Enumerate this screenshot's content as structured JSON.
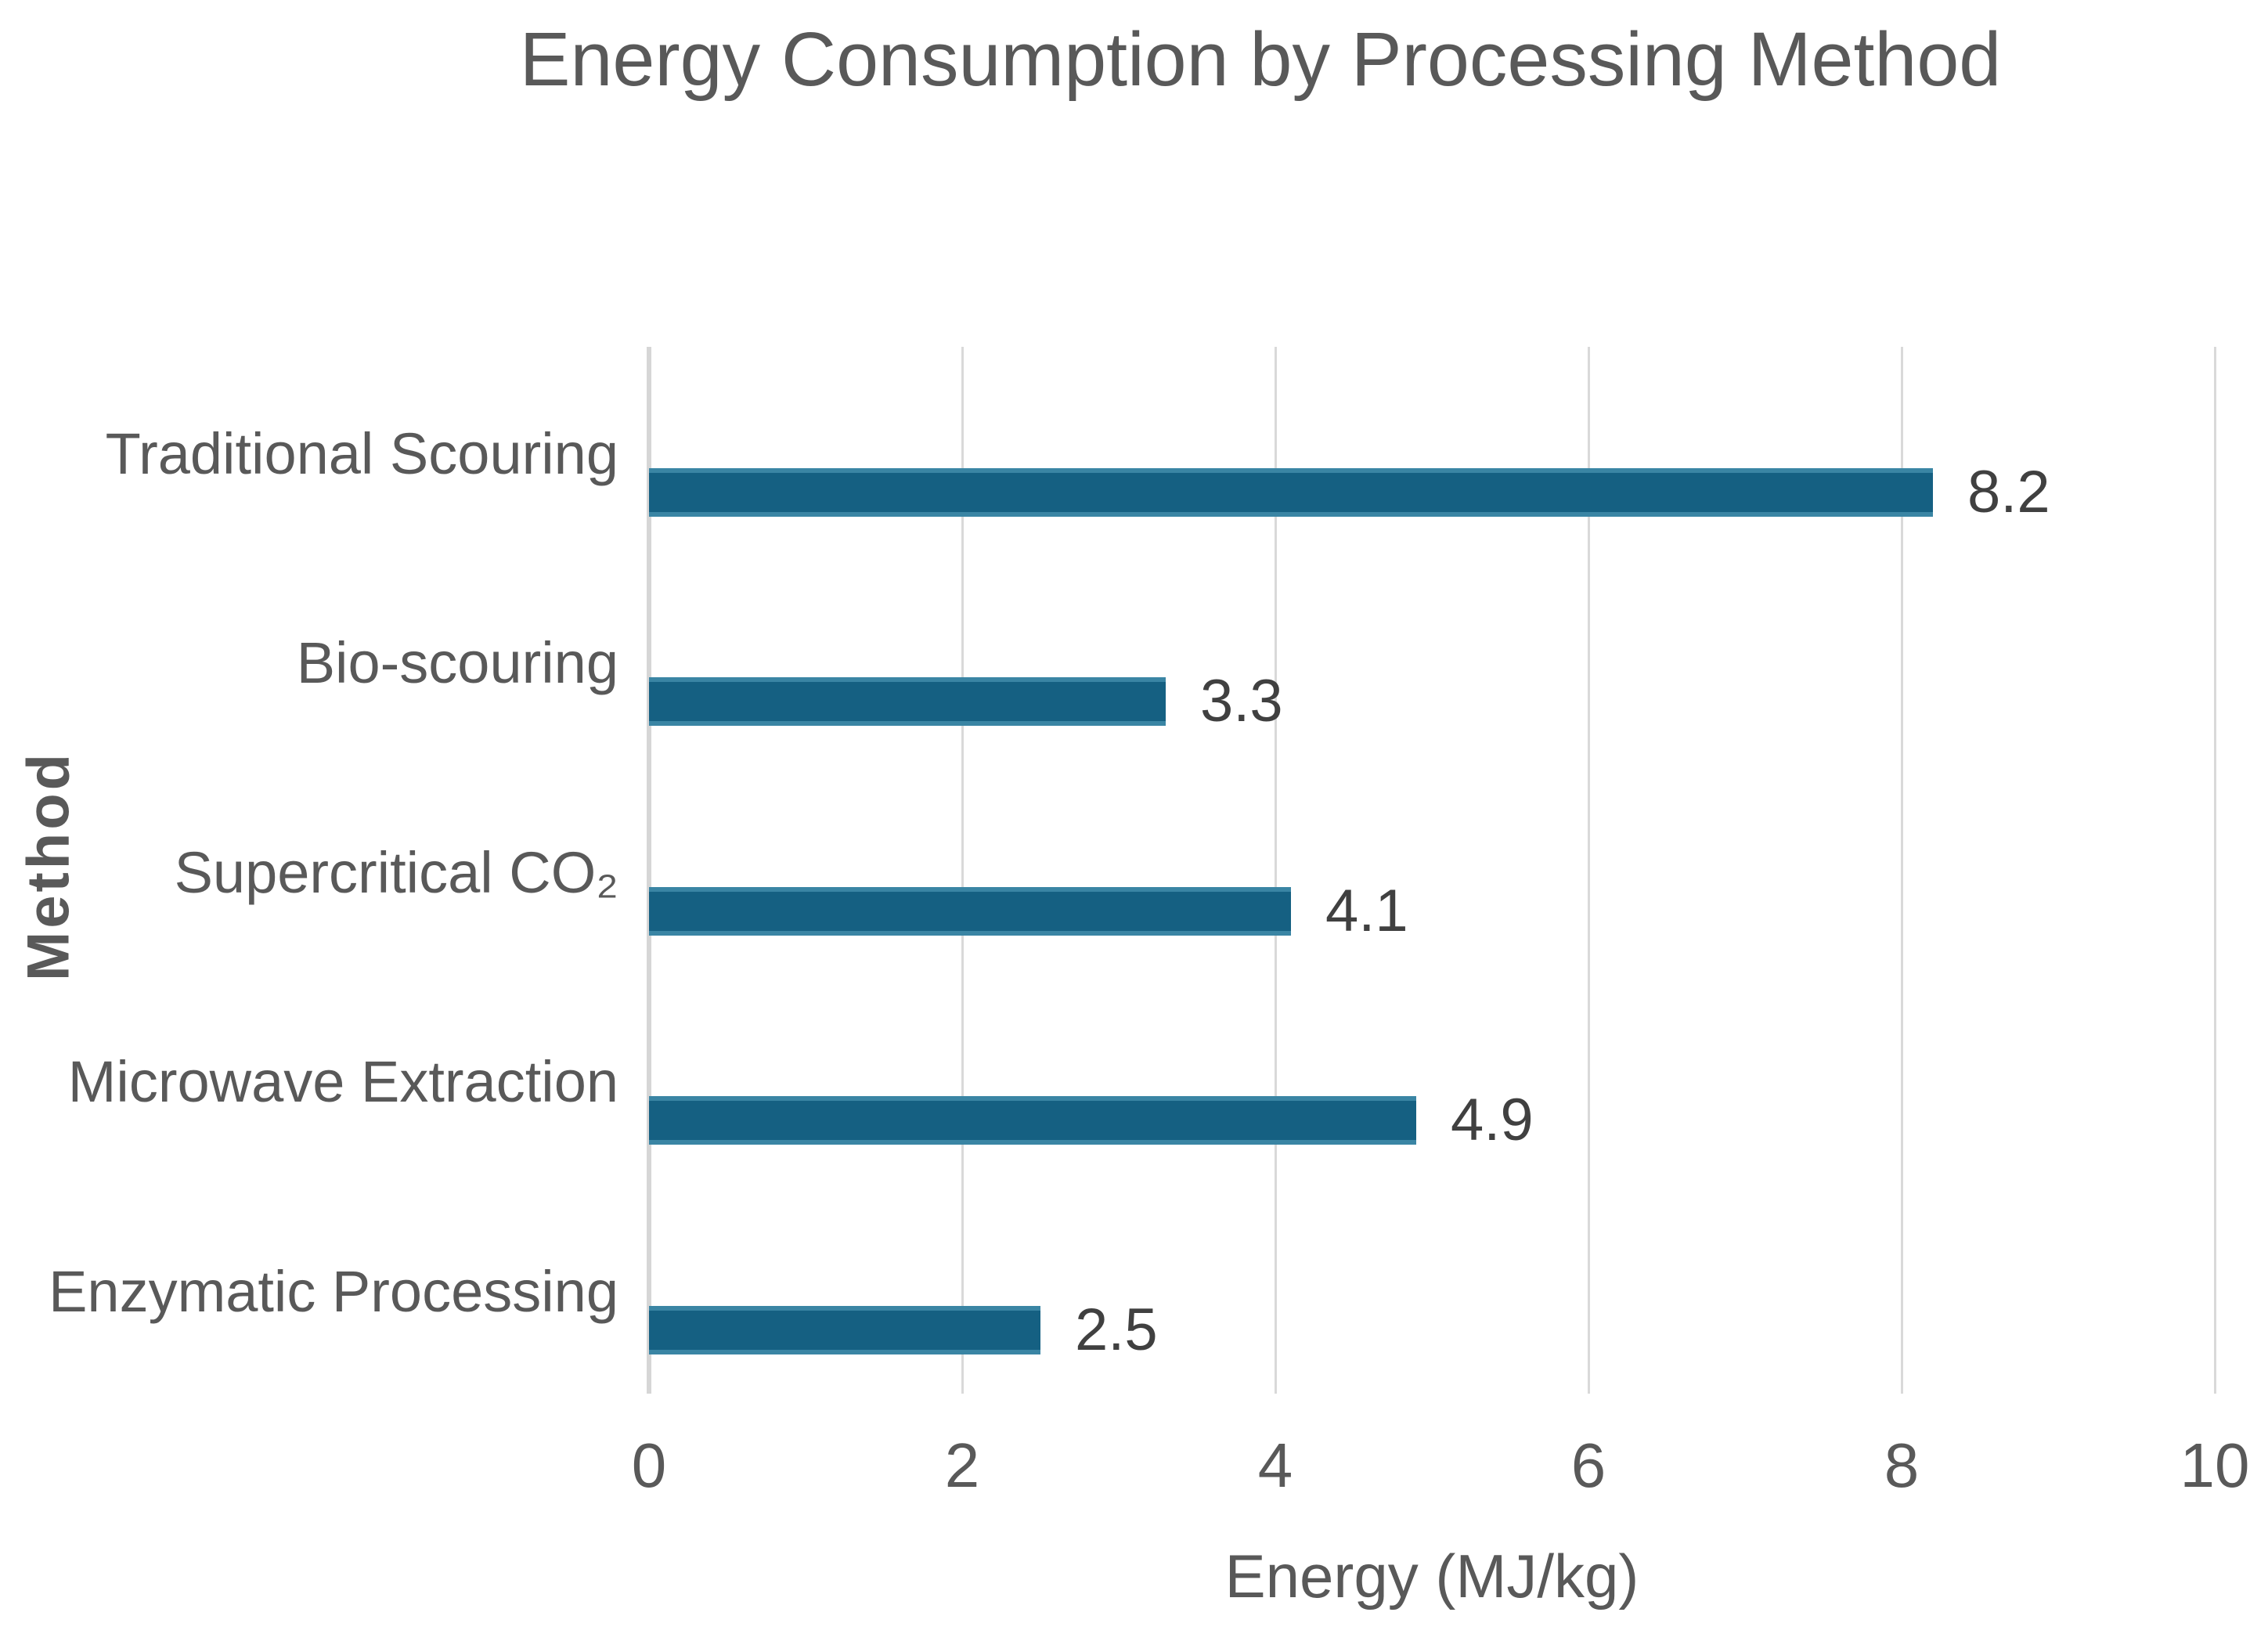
{
  "chart_data": {
    "type": "bar",
    "orientation": "horizontal",
    "title": "Energy Consumption by Processing Method",
    "xlabel": "Energy (MJ/kg)",
    "ylabel": "Method",
    "xlim": [
      0,
      10
    ],
    "x_ticks": [
      "0",
      "2",
      "4",
      "6",
      "8",
      "10"
    ],
    "grid": "vertical gridlines on, evenly spaced every 2 units",
    "legend": "none",
    "categories": [
      "Traditional Scouring",
      "Bio-scouring",
      "Supercritical CO₂",
      "Microwave Extraction",
      "Enzymatic Processing"
    ],
    "values": [
      8.2,
      3.3,
      4.1,
      4.9,
      2.5
    ],
    "value_labels": [
      "8.2",
      "3.3",
      "4.1",
      "4.9",
      "2.5"
    ]
  },
  "colors": {
    "bar_fill": "#156082",
    "bar_edge_highlight": "#3a85a4",
    "gridline": "#d9d9d9",
    "title_text": "#595959",
    "axis_text": "#595959",
    "value_label_text": "#404040",
    "background": "#ffffff"
  }
}
